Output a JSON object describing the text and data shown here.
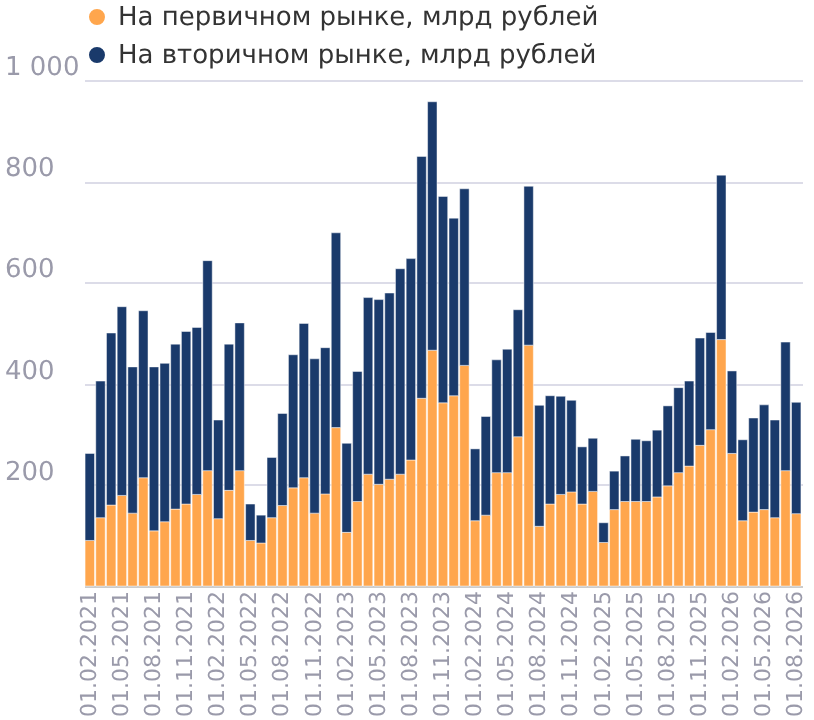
{
  "chart_data": {
    "type": "bar",
    "stacked": true,
    "legend": "top left",
    "grid": "y",
    "categories": [
      "01.02.2021",
      null,
      null,
      "01.05.2021",
      null,
      null,
      "01.08.2021",
      null,
      null,
      "01.11.2021",
      null,
      null,
      "01.02.2022",
      null,
      null,
      "01.05.2022",
      null,
      null,
      "01.08.2022",
      null,
      null,
      "01.11.2022",
      null,
      null,
      "01.02.2023",
      null,
      null,
      "01.05.2023",
      null,
      null,
      "01.08.2023",
      null,
      null,
      "01.11.2023",
      null,
      null,
      "01.02.2024",
      null,
      null,
      "01.05.2024",
      null,
      null,
      "01.08.2024",
      null,
      null,
      "01.11.2024",
      null,
      null,
      "01.02.2025",
      null,
      null,
      "01.05.2025",
      null,
      null,
      "01.08.2025",
      null,
      null,
      "01.11.2025",
      null,
      null,
      "01.02.2026",
      null,
      null,
      "01.05.2026",
      null,
      null,
      "01.08.2026"
    ],
    "series": [
      {
        "name": "На первичном рынке, млрд рублей",
        "color": "#ffa64d",
        "values": [
          90,
          135,
          160,
          179,
          144,
          214,
          109,
          127,
          152,
          162,
          181,
          228,
          133,
          189,
          228,
          90,
          85,
          135,
          159,
          194,
          214,
          144,
          182,
          313,
          106,
          167,
          221,
          201,
          211,
          221,
          249,
          371,
          466,
          362,
          376,
          436,
          129,
          140,
          224,
          224,
          295,
          476,
          118,
          162,
          181,
          186,
          162,
          187,
          86,
          151,
          167,
          167,
          167,
          176,
          198,
          224,
          237,
          278,
          309,
          487,
          262,
          129,
          146,
          151,
          135,
          228,
          143
        ]
      },
      {
        "name": "На вторичном рынке, млрд рублей",
        "color": "#1a3a6b",
        "values": [
          172,
          270,
          340,
          373,
          289,
          330,
          324,
          313,
          326,
          341,
          330,
          415,
          195,
          289,
          292,
          72,
          55,
          119,
          182,
          263,
          305,
          305,
          289,
          385,
          176,
          257,
          349,
          365,
          368,
          406,
          398,
          478,
          491,
          408,
          351,
          349,
          142,
          195,
          223,
          244,
          251,
          314,
          239,
          214,
          194,
          181,
          113,
          105,
          39,
          76,
          90,
          123,
          120,
          132,
          158,
          168,
          168,
          212,
          192,
          325,
          163,
          160,
          186,
          207,
          193,
          254,
          220
        ]
      }
    ],
    "ylim": [
      0,
      1000
    ],
    "yticks": [
      {
        "value": 0,
        "label": null
      },
      200,
      400,
      600,
      800,
      {
        "value": 1000,
        "label": "1 000"
      }
    ]
  }
}
